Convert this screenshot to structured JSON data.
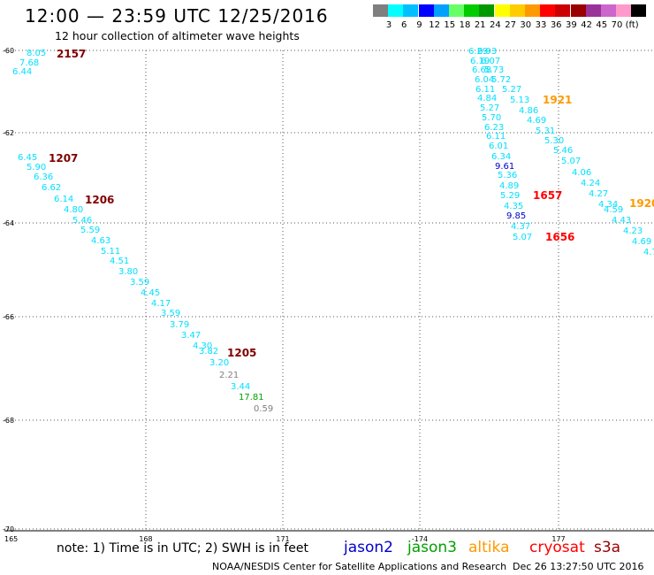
{
  "title": "12:00 — 23:59 UTC 12/25/2016",
  "subtitle": "12 hour collection of altimeter wave heights",
  "legend": {
    "colors": [
      "#7f7f7f",
      "#00ffff",
      "#00bfff",
      "#0000ff",
      "#00a0ff",
      "#66ff66",
      "#00cc00",
      "#009900",
      "#ffff00",
      "#ffcc00",
      "#ff9900",
      "#ff0000",
      "#cc0000",
      "#990000",
      "#993399",
      "#cc66cc",
      "#ff99cc",
      "#000000"
    ],
    "labels": [
      "3",
      "6",
      "9",
      "12",
      "15",
      "18",
      "21",
      "24",
      "27",
      "30",
      "33",
      "36",
      "39",
      "42",
      "45",
      "70",
      "(ft)"
    ]
  },
  "axes": {
    "lat_labels": [
      "-60",
      "-62",
      "-64",
      "-66",
      "-68",
      "-70"
    ],
    "lon_labels": [
      "165",
      "168",
      "171",
      "-174",
      "177"
    ]
  },
  "colors": {
    "cyan": "#00e0ff",
    "red": "#ff0000",
    "darkred": "#800000",
    "orange": "#ff9900",
    "blue": "#0000cc",
    "green": "#00a000",
    "gray": "#808080"
  },
  "track1_values": [
    "8.05",
    "7.68",
    "6.44"
  ],
  "track2_values": [
    "6.45",
    "5.90",
    "6.36",
    "6.62",
    "6.14",
    "4.80",
    "5.46",
    "5.59",
    "4.63",
    "5.11",
    "4.51",
    "3.80",
    "3.59",
    "4.45",
    "4.17",
    "3.59",
    "3.79",
    "3.47",
    "4.30",
    "3.82",
    "3.20"
  ],
  "track2_tail": [
    {
      "v": "2.21",
      "c": "gray"
    },
    {
      "v": "3.44",
      "c": "cyan"
    },
    {
      "v": "17.81",
      "c": "green"
    },
    {
      "v": "0.59",
      "c": "gray"
    }
  ],
  "track3_values": [
    "6.29",
    "6.93",
    "6.19",
    "6.07",
    "6.68",
    "5.73",
    "6.04",
    "5.72",
    "6.11",
    "5.27",
    "4.84",
    "5.13",
    "5.27",
    "4.86",
    "5.70",
    "4.69",
    "6.23",
    "5.31",
    "6.11",
    "5.30",
    "6.01",
    "5.46",
    "6.34",
    "5.07",
    "9.61",
    "4.06",
    "5.36",
    "4.24",
    "4.89",
    "4.27",
    "5.29",
    "4.34",
    "4.35",
    "4.59",
    "9.85",
    "4.43",
    "4.37",
    "4.23",
    "5.07",
    "4.69",
    "4.7"
  ],
  "times": [
    {
      "t": "2157",
      "c": "darkred"
    },
    {
      "t": "1207",
      "c": "darkred"
    },
    {
      "t": "1206",
      "c": "darkred"
    },
    {
      "t": "1205",
      "c": "darkred"
    },
    {
      "t": "1921",
      "c": "orange"
    },
    {
      "t": "1657",
      "c": "red"
    },
    {
      "t": "1656",
      "c": "red"
    },
    {
      "t": "1920",
      "c": "orange"
    }
  ],
  "note": "note: 1) Time is in UTC; 2) SWH is in feet",
  "satellites": [
    {
      "name": "jason2",
      "color": "#0000cc"
    },
    {
      "name": "jason3",
      "color": "#00a000"
    },
    {
      "name": "altika",
      "color": "#ff9900"
    },
    {
      "name": "cryosat",
      "color": "#ff0000"
    },
    {
      "name": "s3a",
      "color": "#990000"
    }
  ],
  "footer": "NOAA/NESDIS Center for Satellite Applications and Research",
  "footer_time": "Dec 26 13:27:50 UTC 2016"
}
